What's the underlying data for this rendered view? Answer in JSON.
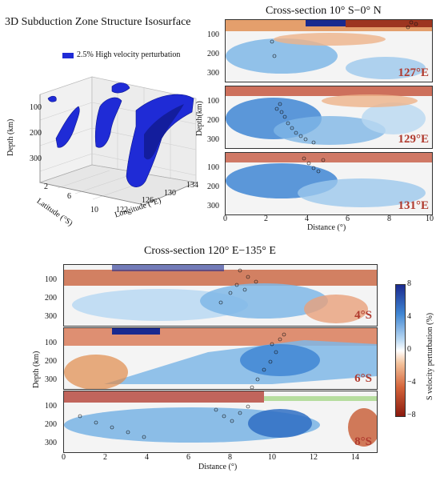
{
  "iso3d": {
    "title": "3D Subduction Zone Structure Isosurface",
    "legend": "2.5% High velocity perturbation",
    "depth_label": "Depth (km)",
    "lat_label": "Latitude (°S)",
    "lon_label": "Longitude (°E)",
    "depth_ticks": [
      "100",
      "200",
      "300"
    ],
    "lat_ticks": [
      "2",
      "6",
      "10"
    ],
    "lon_ticks": [
      "122",
      "126",
      "130",
      "134"
    ],
    "isosurface_color": "#1f2bd6"
  },
  "top_cross": {
    "title": "Cross-section 10° S−0° N",
    "depth_label": "Depth(km)",
    "x_label": "Distance (°)",
    "x_ticks": [
      "0",
      "2",
      "4",
      "6",
      "8",
      "10"
    ],
    "depth_ticks": [
      "100",
      "200",
      "300"
    ],
    "panels": [
      {
        "label": "127°E"
      },
      {
        "label": "129°E"
      },
      {
        "label": "131°E"
      }
    ]
  },
  "bottom_cross": {
    "title": "Cross-section 120° E−135° E",
    "depth_label": "Depth (km)",
    "x_label": "Distance (°)",
    "x_ticks": [
      "0",
      "2",
      "4",
      "6",
      "8",
      "10",
      "12",
      "14"
    ],
    "depth_ticks": [
      "100",
      "200",
      "300"
    ],
    "panels": [
      {
        "label": "4°S"
      },
      {
        "label": "6°S"
      },
      {
        "label": "8°S"
      }
    ]
  },
  "colorbar": {
    "label": "S velocity perturbation (%)",
    "ticks": [
      "8",
      "4",
      "0",
      "−4",
      "−8"
    ],
    "colors": {
      "high": "#1a2a8f",
      "mid": "#ffffff",
      "low": "#8b1a0e"
    }
  }
}
